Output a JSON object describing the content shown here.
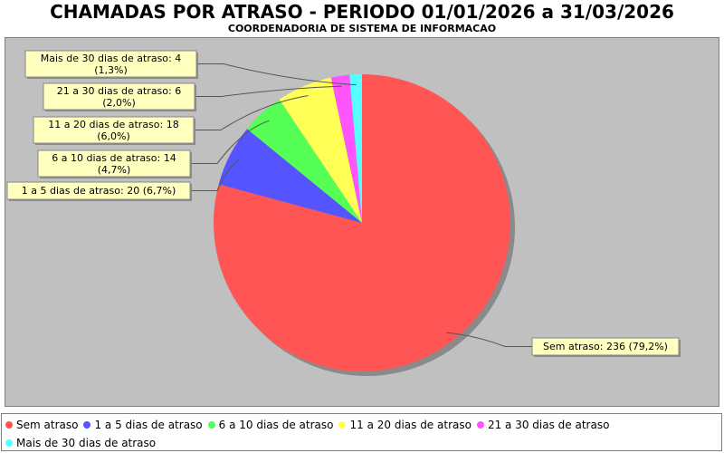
{
  "chart_data": {
    "type": "pie",
    "title": "CHAMADAS POR ATRASO - PERIODO 01/01/2026 a 31/03/2026",
    "subtitle": "COORDENADORIA DE SISTEMA DE INFORMACAO",
    "slices": [
      {
        "name": "Sem atraso",
        "value": 236,
        "percent": "79,2%",
        "color": "#ff5555",
        "label": "Sem atraso: 236 (79,2%)"
      },
      {
        "name": "1 a 5 dias de atraso",
        "value": 20,
        "percent": "6,7%",
        "color": "#5555ff",
        "label": "1 a 5 dias de atraso: 20 (6,7%)"
      },
      {
        "name": "6 a 10 dias de atraso",
        "value": 14,
        "percent": "4,7%",
        "color": "#55ff55",
        "label": "6 a 10 dias de atraso: 14\n(4,7%)"
      },
      {
        "name": "11 a 20 dias de atraso",
        "value": 18,
        "percent": "6,0%",
        "color": "#ffff55",
        "label": "11 a 20 dias de atraso: 18\n(6,0%)"
      },
      {
        "name": "21 a 30 dias de atraso",
        "value": 6,
        "percent": "2,0%",
        "color": "#ff55ff",
        "label": "21 a 30 dias de atraso: 6\n(2,0%)"
      },
      {
        "name": "Mais de 30 dias de atraso",
        "value": 4,
        "percent": "1,3%",
        "color": "#55ffff",
        "label": "Mais de 30 dias de atraso: 4\n(1,3%)"
      }
    ],
    "start_angle_deg": 90,
    "direction": "clockwise",
    "legend_position": "bottom",
    "plot_background": "#c0c0c0",
    "label_background": "#ffffc0"
  }
}
